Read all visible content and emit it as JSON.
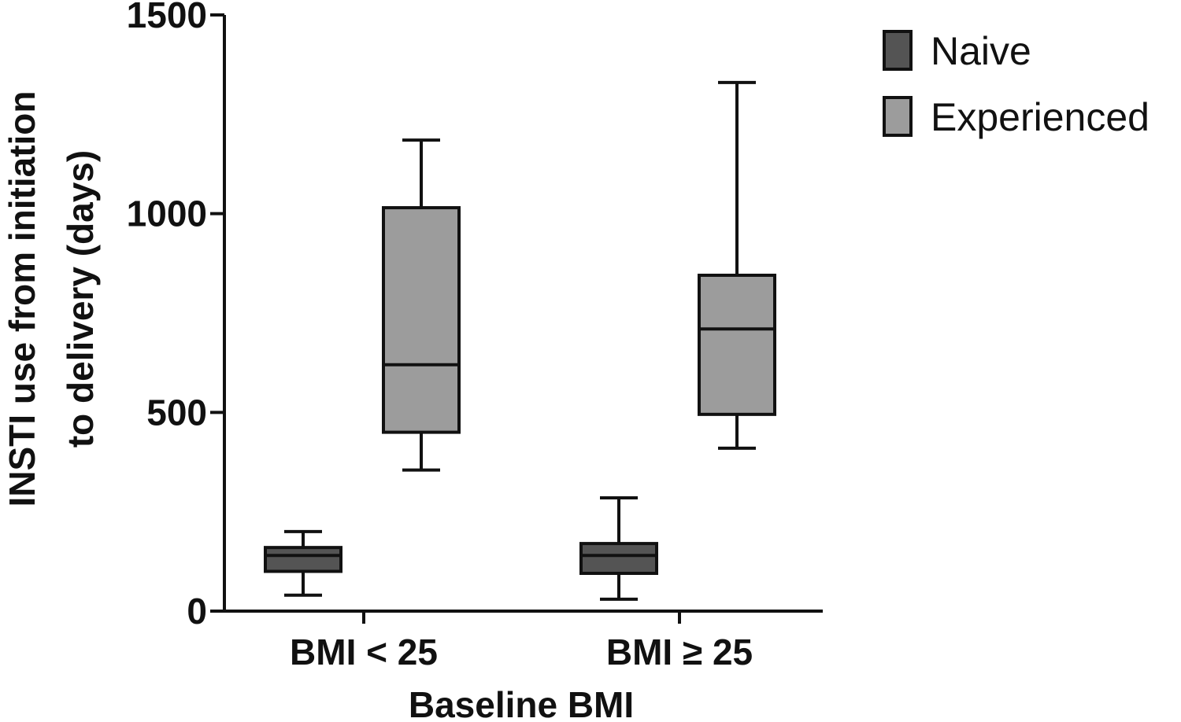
{
  "chart_data": {
    "type": "box",
    "title": "",
    "xlabel": "Baseline BMI",
    "ylabel_lines": [
      "INSTI use from initiation",
      "to delivery (days)"
    ],
    "ylim": [
      0,
      1500
    ],
    "yticks": [
      0,
      500,
      1000,
      1500
    ],
    "categories": [
      "BMI < 25",
      "BMI ≥ 25"
    ],
    "legend_position": "top-right",
    "grid": false,
    "series": [
      {
        "name": "Naive",
        "color": "#545454",
        "boxes": [
          {
            "whisker_low": 40,
            "q1": 100,
            "median": 140,
            "q3": 160,
            "whisker_high": 200
          },
          {
            "whisker_low": 30,
            "q1": 95,
            "median": 140,
            "q3": 170,
            "whisker_high": 285
          }
        ]
      },
      {
        "name": "Experienced",
        "color": "#9c9c9c",
        "boxes": [
          {
            "whisker_low": 355,
            "q1": 450,
            "median": 620,
            "q3": 1015,
            "whisker_high": 1185
          },
          {
            "whisker_low": 410,
            "q1": 495,
            "median": 710,
            "q3": 845,
            "whisker_high": 1330
          }
        ]
      }
    ]
  }
}
